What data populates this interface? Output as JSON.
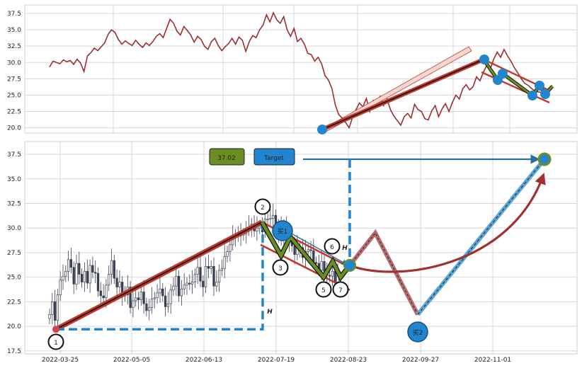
{
  "chart_data": [
    {
      "type": "line",
      "title": "",
      "xlabel": "",
      "ylabel": "",
      "ylim": [
        19.2,
        38.8
      ],
      "y_ticks": [
        "20.0",
        "22.5",
        "25.0",
        "27.5",
        "30.0",
        "32.5",
        "35.0",
        "37.5"
      ],
      "grid": true,
      "colors": {
        "price": "#9b2f2f",
        "trend": "#c0392b",
        "point": "#2185d0",
        "zigzag": "#6b8e23"
      },
      "series": [
        {
          "values": [
            29.3,
            30.2,
            30.0,
            29.8,
            30.4,
            30.1,
            30.3,
            29.7,
            30.5,
            29.9,
            28.6,
            31.0,
            31.5,
            32.2,
            31.8,
            32.4,
            33.0,
            34.3,
            35.0,
            34.6,
            33.5,
            32.8,
            33.3,
            32.9,
            32.6,
            33.4,
            32.8,
            32.3,
            33.0,
            32.6,
            33.2,
            34.0,
            34.4,
            33.8,
            35.2,
            36.6,
            36.0,
            34.8,
            34.2,
            35.5,
            34.9,
            34.2,
            33.1,
            34.0,
            33.5,
            32.5,
            32.0,
            33.2,
            33.7,
            32.6,
            31.8,
            32.4,
            32.9,
            33.7,
            32.8,
            33.9,
            33.4,
            31.7,
            33.2,
            34.1,
            33.8,
            35.0,
            35.7,
            37.3,
            36.2,
            37.6,
            36.5,
            36.0,
            37.0,
            35.0,
            34.0,
            35.2,
            33.2,
            33.7,
            32.8,
            31.4,
            31.2,
            30.2,
            30.8,
            29.8,
            28.0,
            27.3,
            26.0,
            23.5,
            22.0,
            21.5,
            20.8,
            20.0,
            21.6,
            22.8,
            23.8,
            23.2,
            24.5,
            22.5,
            24.2,
            23.9,
            24.8,
            23.4,
            24.4,
            22.8,
            21.8,
            21.1,
            20.4,
            21.7,
            22.2,
            21.5,
            23.6,
            22.8,
            22.5,
            21.4,
            21.2,
            22.6,
            23.4,
            21.7,
            22.9,
            23.7,
            22.5,
            23.9,
            25.0,
            24.4,
            26.0,
            26.6,
            25.8,
            26.3,
            27.8,
            27.2,
            28.5,
            29.6,
            29.0,
            30.5,
            31.6,
            30.8,
            32.0,
            31.0,
            30.2,
            29.2,
            28.4,
            27.5,
            26.8,
            26.5,
            26.0,
            25.6,
            25.5,
            25.4,
            25.6,
            26.0,
            26.5
          ]
        }
      ]
    },
    {
      "type": "line",
      "title": "",
      "xlabel": "",
      "ylabel": "",
      "ylim": [
        17.2,
        38.8
      ],
      "y_ticks": [
        "17.5",
        "20.0",
        "22.5",
        "25.0",
        "27.5",
        "30.0",
        "32.5",
        "35.0",
        "37.5"
      ],
      "x_ticks": [
        "2022-03-25",
        "2022-05-05",
        "2022-06-13",
        "2022-07-19",
        "2022-08-23",
        "2022-09-27",
        "2022-11-01"
      ],
      "grid": true,
      "candles": {
        "closes": [
          21.2,
          22.5,
          20.6,
          23.2,
          24.7,
          25.1,
          25.6,
          26.8,
          26.0,
          24.3,
          26.4,
          25.3,
          24.5,
          25.6,
          24.4,
          26.2,
          25.5,
          25.4,
          23.6,
          23.1,
          22.9,
          24.2,
          25.3,
          26.7,
          24.9,
          24.0,
          24.5,
          23.1,
          23.2,
          24.0,
          21.9,
          22.6,
          22.9,
          22.7,
          23.5,
          22.3,
          21.6,
          21.9,
          22.8,
          22.9,
          23.4,
          23.8,
          23.1,
          22.0,
          22.3,
          23.7,
          24.1,
          25.1,
          23.1,
          23.8,
          24.2,
          24.4,
          24.3,
          24.5,
          25.3,
          26.0,
          24.6,
          24.0,
          26.1,
          25.9,
          26.1,
          24.1,
          24.5,
          25.7,
          25.9,
          27.1,
          27.6,
          28.3,
          29.1,
          29.3,
          29.2,
          29.3,
          29.4,
          29.8,
          30.1,
          30.4,
          29.7,
          30.0,
          30.2,
          29.6,
          30.9,
          30.9,
          31.0,
          31.3,
          29.5,
          30.0,
          28.8,
          30.3,
          29.2,
          28.6,
          28.2,
          27.3,
          28.1,
          28.0,
          27.0,
          27.6,
          27.8,
          27.7,
          26.5,
          26.4,
          25.7,
          26.6,
          25.6,
          25.2,
          25.1,
          25.6,
          24.5,
          25.2
        ]
      },
      "value_label": "37.02",
      "target_label": "Target",
      "markers": [
        "1",
        "2",
        "3",
        "5",
        "6",
        "7",
        "买1",
        "买2"
      ],
      "h_labels": [
        "H",
        "H"
      ],
      "colors": {
        "trend": "#c0392b",
        "zigzag": "#6b8e23",
        "projection": "#b56b6b",
        "path": "#5aa5d6",
        "dash": "#2185d0",
        "curve": "#a33030",
        "label_green": "#6b8e23",
        "label_blue": "#2185d0"
      }
    }
  ]
}
